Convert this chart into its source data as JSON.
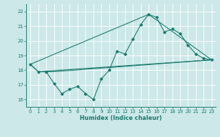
{
  "title": "",
  "xlabel": "Humidex (Indice chaleur)",
  "xlim": [
    -0.5,
    23.5
  ],
  "ylim": [
    15.5,
    22.5
  ],
  "yticks": [
    16,
    17,
    18,
    19,
    20,
    21,
    22
  ],
  "xticks": [
    0,
    1,
    2,
    3,
    4,
    5,
    6,
    7,
    8,
    9,
    10,
    11,
    12,
    13,
    14,
    15,
    16,
    17,
    18,
    19,
    20,
    21,
    22,
    23
  ],
  "background_color": "#cce8e8",
  "grid_color": "#ffffff",
  "line_color": "#1a7a6e",
  "line1_x": [
    0,
    1,
    2,
    3,
    4,
    5,
    6,
    7,
    8,
    9,
    10,
    11,
    12,
    13,
    14,
    15,
    16,
    17,
    18,
    19,
    20,
    21,
    22,
    23
  ],
  "line1_y": [
    18.4,
    17.9,
    17.9,
    17.1,
    16.4,
    16.7,
    16.9,
    16.4,
    16.0,
    17.4,
    18.0,
    19.3,
    19.1,
    20.1,
    21.1,
    21.8,
    21.6,
    20.6,
    20.8,
    20.5,
    19.7,
    19.1,
    18.8,
    18.7
  ],
  "line2_x": [
    0,
    1,
    2,
    3,
    23
  ],
  "line2_y": [
    18.4,
    17.9,
    17.9,
    17.9,
    18.7
  ],
  "line3_x": [
    0,
    15,
    23
  ],
  "line3_y": [
    18.4,
    21.8,
    18.7
  ],
  "line4_x": [
    1,
    23
  ],
  "line4_y": [
    17.9,
    18.7
  ]
}
